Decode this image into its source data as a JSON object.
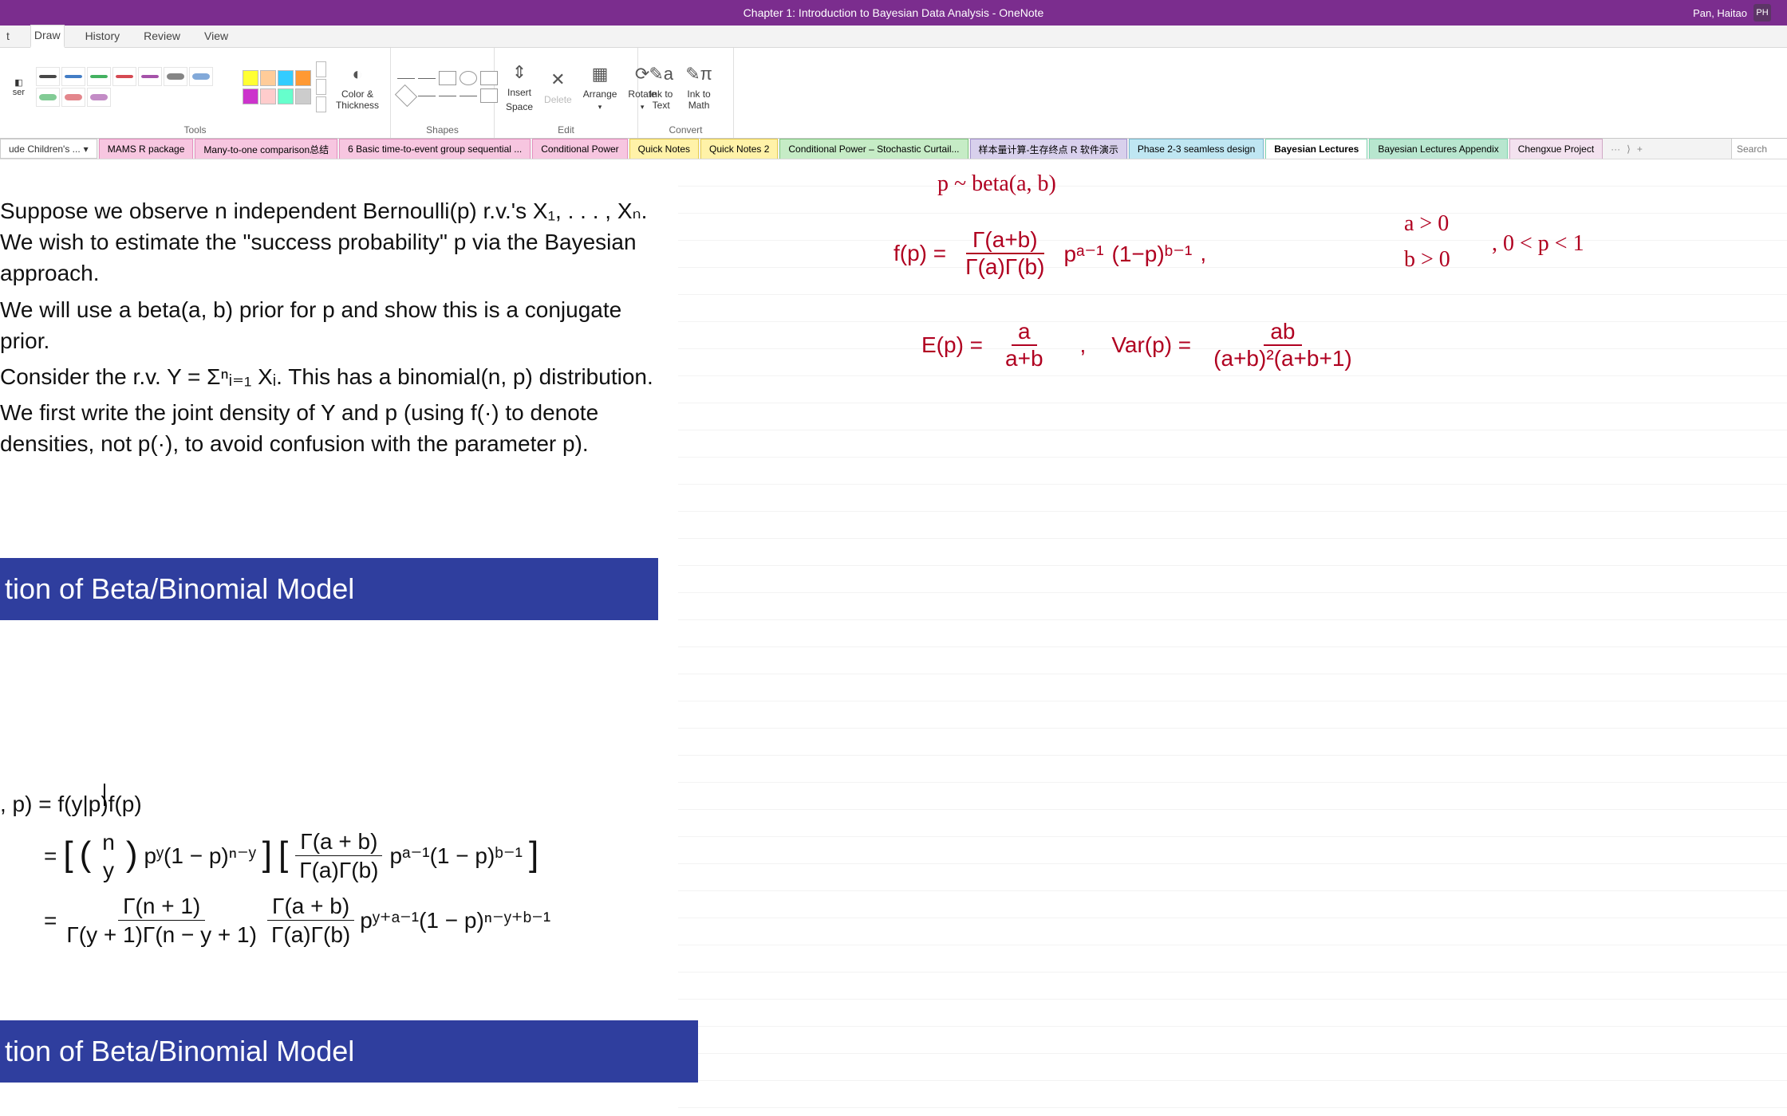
{
  "title_bar": {
    "title": "Chapter 1: Introduction to Bayesian Data Analysis  -  OneNote",
    "user_name": "Pan, Haitao",
    "user_initials": "PH"
  },
  "ribbon_tabs": {
    "items": [
      "t",
      "Draw",
      "History",
      "Review",
      "View"
    ],
    "active_index": 1
  },
  "ribbon_groups": {
    "tools": {
      "label": "Tools",
      "ser_btn": "ser",
      "pen_strokes": [
        "#333",
        "#2f6fbf",
        "#2fa84f",
        "#d0353f",
        "#9b3fa0",
        "#333",
        "#2f6fbf",
        "#2fa84f",
        "#d0353f",
        "#9b3fa0"
      ],
      "palette_row1": [
        "#ffff33",
        "#ffcc99",
        "#33ccff",
        "#ff9933"
      ],
      "palette_row2": [
        "#cc33cc",
        "#ffcccc",
        "#66ffcc",
        "#cccccc"
      ],
      "color_thickness": "Color &\nThickness"
    },
    "shapes": {
      "label": "Shapes"
    },
    "edit": {
      "label": "Edit",
      "insert": "Insert",
      "space": "Space",
      "delete": "Delete",
      "arrange": "Arrange",
      "rotate": "Rotate"
    },
    "convert": {
      "label": "Convert",
      "ink_to_text": "Ink to\nText",
      "ink_to_math": "Ink to\nMath"
    }
  },
  "notebook_picker": "ude Children's ...",
  "page_tabs": [
    {
      "label": "MAMS R package",
      "bg": "#f7c6e0",
      "border": "#e48fbf"
    },
    {
      "label": "Many-to-one comparison总结",
      "bg": "#f7c6e0",
      "border": "#e48fbf"
    },
    {
      "label": "6 Basic time-to-event group sequential ...",
      "bg": "#f7c6e0",
      "border": "#e48fbf"
    },
    {
      "label": "Conditional Power",
      "bg": "#f7c6e0",
      "border": "#e48fbf"
    },
    {
      "label": "Quick Notes",
      "bg": "#fff2a8",
      "border": "#e6cc4e"
    },
    {
      "label": "Quick Notes 2",
      "bg": "#fff2a8",
      "border": "#e6cc4e"
    },
    {
      "label": "Conditional Power – Stochastic Curtail...",
      "bg": "#c6ecc6",
      "border": "#7fc77f"
    },
    {
      "label": "样本量计算-生存终点 R 软件演示",
      "bg": "#d8d0ec",
      "border": "#a594cf"
    },
    {
      "label": "Phase 2-3 seamless design",
      "bg": "#bfe6f2",
      "border": "#7bb9cf"
    },
    {
      "label": "Bayesian Lectures",
      "bg": "#ffffff",
      "border": "#7fd6b0"
    },
    {
      "label": "Bayesian Lectures Appendix",
      "bg": "#b8e6cf",
      "border": "#7fd6b0"
    },
    {
      "label": "Chengxue Project",
      "bg": "#f3e2ef",
      "border": "#d0a8c5"
    }
  ],
  "search_placeholder": "Search",
  "doc": {
    "p1": "Suppose we observe n independent Bernoulli(p) r.v.'s X₁, . . . , Xₙ. We wish to estimate the \"success probability\" p via the Bayesian approach.",
    "p2": "We will use a beta(a, b) prior for p and show this is a conjugate prior.",
    "p3": "Consider the r.v. Y = Σⁿᵢ₌₁ Xᵢ. This has a binomial(n, p) distribution.",
    "p4": "We first write the joint density of Y and p (using f(·) to denote densities, not p(·), to avoid confusion with the parameter p).",
    "section_title_1": "tion of Beta/Binomial Model",
    "section_title_2": "tion of Beta/Binomial Model"
  },
  "formula": {
    "line1": ", p) = f(y|p)f(p)",
    "eq": "=",
    "binom_top": "n",
    "binom_bot": "y",
    "term_py": "pʸ(1 − p)ⁿ⁻ʸ",
    "gamma_ab": "Γ(a + b)",
    "gamma_a_gamma_b": "Γ(a)Γ(b)",
    "term_pa": "pᵃ⁻¹(1 − p)ᵇ⁻¹",
    "gamma_n1": "Γ(n + 1)",
    "gamma_y1_ny1": "Γ(y + 1)Γ(n − y + 1)",
    "term_pya": "pʸ⁺ᵃ⁻¹(1 − p)ⁿ⁻ʸ⁺ᵇ⁻¹"
  },
  "handwriting": {
    "h1": "p ~ beta(a, b)",
    "h2_f": "f(p) =",
    "h2_num": "Γ(a+b)",
    "h2_den": "Γ(a)Γ(b)",
    "h2_pa": "pᵃ⁻¹",
    "h2_pb": "(1−p)ᵇ⁻¹",
    "h2_comma": ",",
    "h2_cond1": "a > 0",
    "h2_cond2": "b > 0",
    "h2_cond3": ", 0 < p < 1",
    "h3_e": "E(p) =",
    "h3_e_num": "a",
    "h3_e_den": "a+b",
    "h3_comma": ",",
    "h3_v": "Var(p) =",
    "h3_v_num": "ab",
    "h3_v_den": "(a+b)²(a+b+1)"
  },
  "colors": {
    "titlebar": "#7b2d8e",
    "section_blue": "#2f3e9e",
    "ink_red": "#b00020"
  }
}
